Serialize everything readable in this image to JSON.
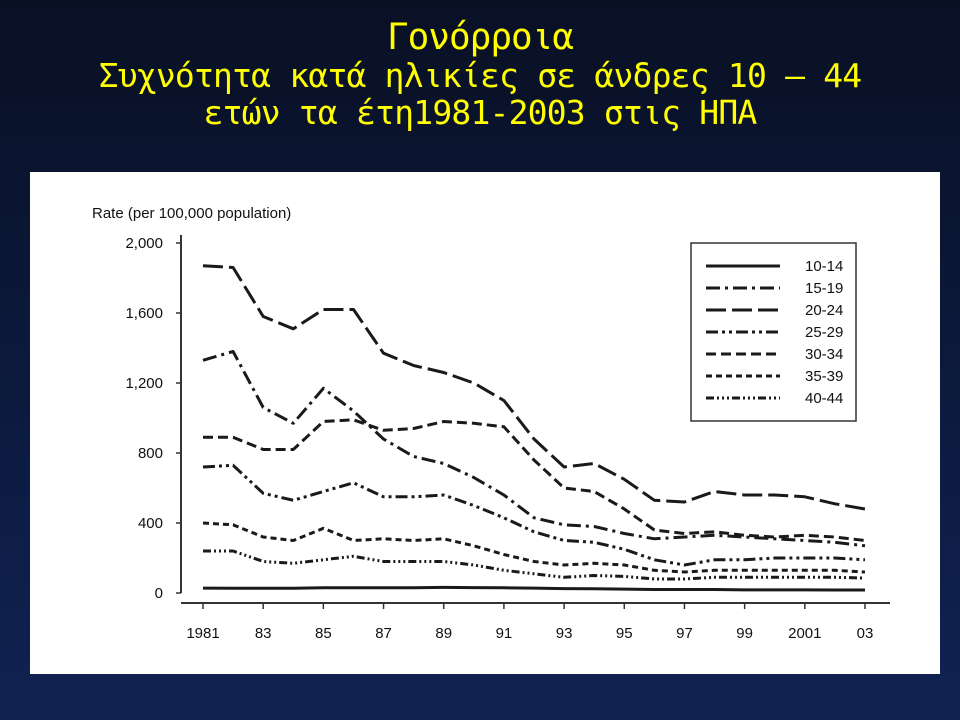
{
  "slide": {
    "title_line1": "Γονόρροια",
    "title_line2": "Συχνότητα κατά ηλικίες σε άνδρες 10 – 44",
    "title_line3": "ετών τα έτη1981-2003 στις ΗΠΑ",
    "title_color": "#ffff00",
    "background_color": "#0c1a3e"
  },
  "chart_data": {
    "type": "line",
    "ylabel": "Rate (per 100,000 population)",
    "xlabel": "",
    "ylim": [
      0,
      2000
    ],
    "xlim": [
      1981,
      2003
    ],
    "yticks": [
      0,
      400,
      800,
      1200,
      1600,
      2000
    ],
    "ytick_labels": [
      "0",
      "400",
      "800",
      "1,200",
      "1,600",
      "2,000"
    ],
    "xticks": [
      1981,
      1983,
      1985,
      1987,
      1989,
      1991,
      1993,
      1995,
      1997,
      1999,
      2001,
      2003
    ],
    "xtick_labels": [
      "1981",
      "83",
      "85",
      "87",
      "89",
      "91",
      "93",
      "95",
      "97",
      "99",
      "2001",
      "03"
    ],
    "grid": false,
    "legend_position": "top-right",
    "x": [
      1981,
      1982,
      1983,
      1984,
      1985,
      1986,
      1987,
      1988,
      1989,
      1990,
      1991,
      1992,
      1993,
      1994,
      1995,
      1996,
      1997,
      1998,
      1999,
      2000,
      2001,
      2002,
      2003
    ],
    "series": [
      {
        "name": "10-14",
        "dash": "solid",
        "values": [
          28,
          27,
          27,
          27,
          30,
          30,
          30,
          30,
          32,
          31,
          30,
          28,
          25,
          24,
          22,
          20,
          20,
          20,
          18,
          18,
          18,
          17,
          17
        ]
      },
      {
        "name": "15-19",
        "dash": "dashdot",
        "values": [
          1330,
          1380,
          1060,
          970,
          1170,
          1040,
          880,
          780,
          740,
          660,
          560,
          430,
          390,
          380,
          340,
          310,
          320,
          330,
          320,
          310,
          300,
          290,
          270
        ]
      },
      {
        "name": "20-24",
        "dash": "longdash",
        "values": [
          1870,
          1860,
          1580,
          1510,
          1620,
          1620,
          1370,
          1300,
          1260,
          1200,
          1100,
          880,
          720,
          740,
          650,
          530,
          520,
          580,
          560,
          560,
          550,
          510,
          480
        ]
      },
      {
        "name": "25-29",
        "dash": "dashdotdot",
        "values": [
          720,
          730,
          570,
          530,
          580,
          630,
          550,
          550,
          560,
          500,
          430,
          350,
          300,
          290,
          250,
          190,
          160,
          190,
          190,
          200,
          200,
          200,
          190
        ]
      },
      {
        "name": "30-34",
        "dash": "dash",
        "values": [
          890,
          890,
          820,
          820,
          980,
          990,
          930,
          940,
          980,
          970,
          950,
          760,
          600,
          580,
          480,
          360,
          340,
          350,
          330,
          320,
          330,
          320,
          300
        ]
      },
      {
        "name": "35-39",
        "dash": "shortdash",
        "values": [
          400,
          390,
          320,
          300,
          370,
          300,
          310,
          300,
          310,
          270,
          220,
          180,
          160,
          170,
          160,
          130,
          120,
          130,
          130,
          130,
          130,
          130,
          120
        ]
      },
      {
        "name": "40-44",
        "dash": "dashdotdotdot",
        "values": [
          240,
          240,
          180,
          170,
          190,
          210,
          180,
          180,
          180,
          160,
          130,
          110,
          90,
          100,
          95,
          80,
          80,
          90,
          90,
          90,
          90,
          90,
          85
        ]
      }
    ]
  }
}
